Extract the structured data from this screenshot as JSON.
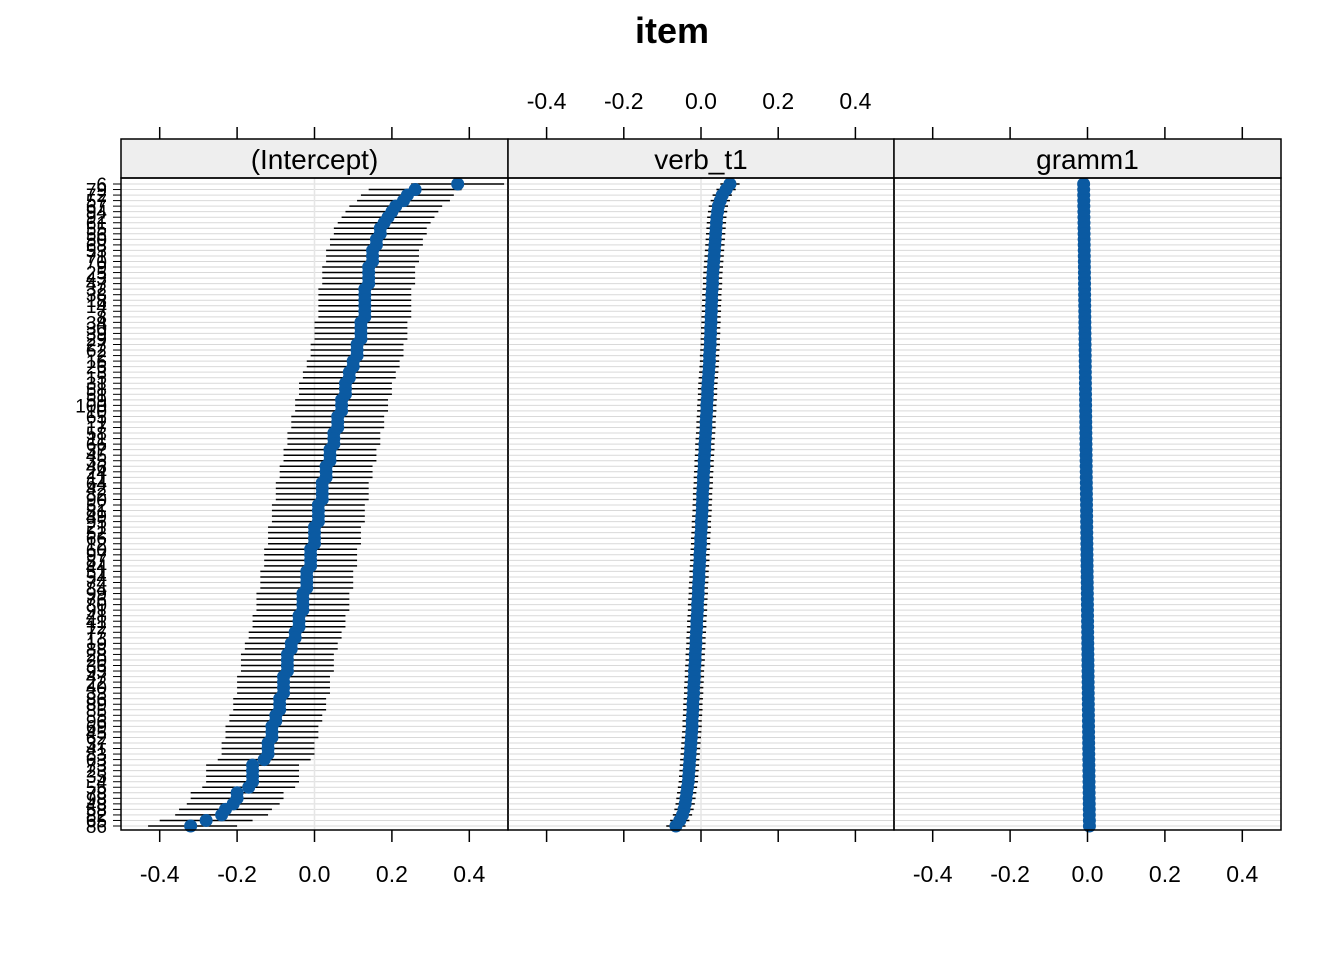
{
  "chart_data": {
    "type": "scatter",
    "title": "item",
    "panels": [
      {
        "name": "(Intercept)",
        "values": [
          0.37,
          0.26,
          0.24,
          0.23,
          0.21,
          0.2,
          0.19,
          0.18,
          0.17,
          0.17,
          0.16,
          0.16,
          0.15,
          0.15,
          0.15,
          0.14,
          0.14,
          0.14,
          0.14,
          0.13,
          0.13,
          0.13,
          0.13,
          0.13,
          0.13,
          0.12,
          0.12,
          0.12,
          0.12,
          0.11,
          0.11,
          0.11,
          0.1,
          0.1,
          0.09,
          0.09,
          0.08,
          0.08,
          0.08,
          0.07,
          0.07,
          0.07,
          0.06,
          0.06,
          0.06,
          0.05,
          0.05,
          0.05,
          0.04,
          0.04,
          0.04,
          0.03,
          0.03,
          0.03,
          0.02,
          0.02,
          0.02,
          0.02,
          0.01,
          0.01,
          0.01,
          0.01,
          0.0,
          0.0,
          0.0,
          0.0,
          -0.01,
          -0.01,
          -0.01,
          -0.01,
          -0.02,
          -0.02,
          -0.02,
          -0.02,
          -0.03,
          -0.03,
          -0.03,
          -0.03,
          -0.04,
          -0.04,
          -0.04,
          -0.05,
          -0.05,
          -0.06,
          -0.06,
          -0.07,
          -0.07,
          -0.07,
          -0.07,
          -0.08,
          -0.08,
          -0.08,
          -0.08,
          -0.09,
          -0.09,
          -0.09,
          -0.1,
          -0.1,
          -0.11,
          -0.11,
          -0.11,
          -0.12,
          -0.12,
          -0.12,
          -0.13,
          -0.16,
          -0.16,
          -0.16,
          -0.16,
          -0.17,
          -0.2,
          -0.2,
          -0.21,
          -0.23,
          -0.24,
          -0.28,
          -0.32
        ],
        "ci_low": [
          0.25,
          0.14,
          0.12,
          0.11,
          0.09,
          0.08,
          0.07,
          0.06,
          0.05,
          0.05,
          0.04,
          0.04,
          0.03,
          0.03,
          0.03,
          0.02,
          0.02,
          0.02,
          0.02,
          0.01,
          0.01,
          0.01,
          0.01,
          0.01,
          0.01,
          0.0,
          0.0,
          0.0,
          0.0,
          -0.01,
          -0.01,
          -0.01,
          -0.02,
          -0.02,
          -0.03,
          -0.03,
          -0.04,
          -0.04,
          -0.04,
          -0.05,
          -0.05,
          -0.05,
          -0.06,
          -0.06,
          -0.06,
          -0.07,
          -0.07,
          -0.07,
          -0.08,
          -0.08,
          -0.08,
          -0.09,
          -0.09,
          -0.09,
          -0.1,
          -0.1,
          -0.1,
          -0.1,
          -0.11,
          -0.11,
          -0.11,
          -0.11,
          -0.12,
          -0.12,
          -0.12,
          -0.12,
          -0.13,
          -0.13,
          -0.13,
          -0.13,
          -0.14,
          -0.14,
          -0.14,
          -0.14,
          -0.15,
          -0.15,
          -0.15,
          -0.15,
          -0.16,
          -0.16,
          -0.16,
          -0.17,
          -0.17,
          -0.18,
          -0.18,
          -0.19,
          -0.19,
          -0.19,
          -0.19,
          -0.2,
          -0.2,
          -0.2,
          -0.2,
          -0.21,
          -0.21,
          -0.21,
          -0.22,
          -0.22,
          -0.23,
          -0.23,
          -0.23,
          -0.24,
          -0.24,
          -0.24,
          -0.25,
          -0.28,
          -0.28,
          -0.28,
          -0.28,
          -0.29,
          -0.32,
          -0.32,
          -0.33,
          -0.35,
          -0.36,
          -0.4,
          -0.43
        ],
        "ci_high": [
          0.49,
          0.38,
          0.36,
          0.35,
          0.33,
          0.32,
          0.31,
          0.3,
          0.29,
          0.29,
          0.28,
          0.28,
          0.27,
          0.27,
          0.27,
          0.26,
          0.26,
          0.26,
          0.26,
          0.25,
          0.25,
          0.25,
          0.25,
          0.25,
          0.25,
          0.24,
          0.24,
          0.24,
          0.24,
          0.23,
          0.23,
          0.23,
          0.22,
          0.22,
          0.21,
          0.21,
          0.2,
          0.2,
          0.2,
          0.19,
          0.19,
          0.19,
          0.18,
          0.18,
          0.18,
          0.17,
          0.17,
          0.17,
          0.16,
          0.16,
          0.16,
          0.15,
          0.15,
          0.15,
          0.14,
          0.14,
          0.14,
          0.14,
          0.13,
          0.13,
          0.13,
          0.13,
          0.12,
          0.12,
          0.12,
          0.12,
          0.11,
          0.11,
          0.11,
          0.11,
          0.1,
          0.1,
          0.1,
          0.1,
          0.09,
          0.09,
          0.09,
          0.09,
          0.08,
          0.08,
          0.08,
          0.07,
          0.07,
          0.06,
          0.06,
          0.05,
          0.05,
          0.05,
          0.05,
          0.04,
          0.04,
          0.04,
          0.04,
          0.03,
          0.03,
          0.03,
          0.02,
          0.02,
          0.01,
          0.01,
          0.01,
          0.0,
          0.0,
          0.0,
          -0.01,
          -0.04,
          -0.04,
          -0.04,
          -0.04,
          -0.05,
          -0.08,
          -0.08,
          -0.09,
          -0.11,
          -0.12,
          -0.16,
          -0.2
        ],
        "bottom_axis": true,
        "top_axis": false
      },
      {
        "name": "verb_t1",
        "values": [
          0.075,
          0.065,
          0.055,
          0.05,
          0.045,
          0.043,
          0.041,
          0.04,
          0.039,
          0.038,
          0.037,
          0.036,
          0.035,
          0.034,
          0.033,
          0.032,
          0.031,
          0.03,
          0.03,
          0.029,
          0.028,
          0.028,
          0.027,
          0.027,
          0.026,
          0.026,
          0.025,
          0.025,
          0.024,
          0.024,
          0.023,
          0.022,
          0.022,
          0.021,
          0.02,
          0.019,
          0.018,
          0.017,
          0.017,
          0.016,
          0.015,
          0.015,
          0.014,
          0.013,
          0.013,
          0.012,
          0.011,
          0.01,
          0.01,
          0.009,
          0.008,
          0.008,
          0.007,
          0.006,
          0.006,
          0.005,
          0.004,
          0.004,
          0.003,
          0.003,
          0.002,
          0.001,
          0.001,
          0.0,
          -0.001,
          -0.001,
          -0.002,
          -0.003,
          -0.003,
          -0.004,
          -0.005,
          -0.005,
          -0.006,
          -0.007,
          -0.007,
          -0.008,
          -0.009,
          -0.009,
          -0.01,
          -0.011,
          -0.011,
          -0.012,
          -0.013,
          -0.013,
          -0.014,
          -0.015,
          -0.015,
          -0.016,
          -0.017,
          -0.017,
          -0.018,
          -0.019,
          -0.019,
          -0.02,
          -0.021,
          -0.021,
          -0.022,
          -0.023,
          -0.023,
          -0.024,
          -0.025,
          -0.026,
          -0.027,
          -0.028,
          -0.029,
          -0.03,
          -0.031,
          -0.032,
          -0.033,
          -0.035,
          -0.037,
          -0.039,
          -0.041,
          -0.044,
          -0.048,
          -0.055,
          -0.065
        ],
        "ci_halfwidth": 0.025,
        "bottom_axis": false,
        "top_axis": true
      },
      {
        "name": "gramm1",
        "values": [
          -0.01,
          -0.008,
          -0.006,
          -0.004,
          -0.002,
          0.0,
          0.002,
          0.004,
          0.006,
          0.008
        ],
        "note_values": "points densely spaced from -0.01 at top to 0.005 at bottom",
        "bottom_axis": true,
        "top_axis": false
      }
    ],
    "y_labels": [
      "6",
      "79",
      "72",
      "57",
      "67",
      "94",
      "92",
      "61",
      "55",
      "56",
      "50",
      "68",
      "53",
      "71",
      "70",
      "9",
      "25",
      "43",
      "47",
      "32",
      "38",
      "18",
      "14",
      "7",
      "8",
      "34",
      "30",
      "39",
      "29",
      "27",
      "62",
      "2",
      "16",
      "26",
      "3",
      "15",
      "31",
      "58",
      "51",
      "59",
      "100",
      "10",
      "65",
      "1",
      "17",
      "58",
      "11",
      "66",
      "37",
      "45",
      "35",
      "46",
      "24",
      "11",
      "64",
      "42",
      "82",
      "90",
      "52",
      "81",
      "49",
      "95",
      "21",
      "52",
      "66",
      "12",
      "60",
      "97",
      "87",
      "44",
      "51",
      "54",
      "74",
      "84",
      "99",
      "76",
      "80",
      "91",
      "48",
      "41",
      "12",
      "77",
      "13",
      "19",
      "88",
      "28",
      "20",
      "36",
      "93",
      "47",
      "22",
      "40",
      "33",
      "86",
      "89",
      "85",
      "5",
      "96",
      "69",
      "45",
      "62",
      "37",
      "41",
      "83",
      "63",
      "73",
      "23",
      "35",
      "4",
      "55",
      "78",
      "98",
      "48",
      "58",
      "82",
      "65",
      "86"
    ],
    "xlim": [
      -0.5,
      0.5
    ],
    "x_ticks": [
      "-0.4",
      "-0.2",
      "0.0",
      "0.2",
      "0.4"
    ],
    "x_tick_values": [
      -0.4,
      -0.2,
      0.0,
      0.2,
      0.4
    ],
    "grid": true,
    "point_color": "#0b5aa2",
    "grid_color": "#d9d9d9",
    "strip_color": "#eeeeee"
  }
}
